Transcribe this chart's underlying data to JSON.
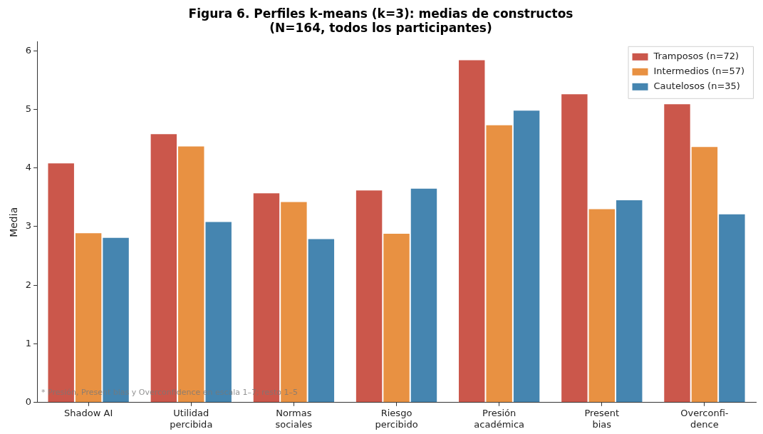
{
  "chart_data": {
    "type": "bar",
    "title": "Figura 6. Perfiles k-means (k=3): medias de constructos\n(N=164, todos los participantes)",
    "ylabel": "Media",
    "categories": [
      "Shadow AI",
      "Utilidad\npercibida",
      "Normas\nsociales",
      "Riesgo\npercibido",
      "Presión\nacadémica",
      "Present\nbias",
      "Overconfi-\ndence"
    ],
    "series": [
      {
        "name": "Tramposos (n=72)",
        "color": "#cb574b",
        "values": [
          4.09,
          4.59,
          3.58,
          3.63,
          5.85,
          5.27,
          5.1
        ]
      },
      {
        "name": "Intermedios (n=57)",
        "color": "#e89142",
        "values": [
          2.9,
          4.38,
          3.43,
          2.89,
          4.74,
          3.31,
          4.37
        ]
      },
      {
        "name": "Cautelosos (n=35)",
        "color": "#4585b0",
        "values": [
          2.82,
          3.09,
          2.8,
          3.66,
          4.99,
          3.46,
          3.22
        ]
      }
    ],
    "ylim": [
      0,
      6.15
    ],
    "yticks": [
      0,
      1,
      2,
      3,
      4,
      5,
      6
    ],
    "grid": false,
    "legend": "top right",
    "annotations": [
      "* Presión, Present bias y Overconfidence en escala 1–7; resto 1–5"
    ]
  }
}
